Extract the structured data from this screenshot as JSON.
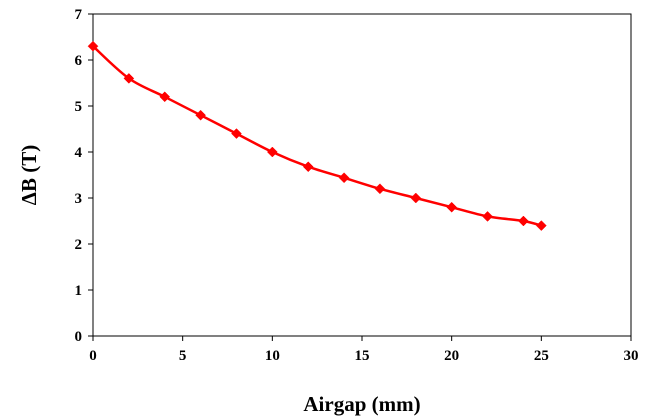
{
  "chart_data": {
    "type": "line",
    "title": "",
    "xlabel": "Airgap (mm)",
    "ylabel": "ΔB (T)",
    "xlim": [
      0,
      30
    ],
    "ylim": [
      0,
      7
    ],
    "xticks": [
      "0",
      "5",
      "10",
      "15",
      "20",
      "25",
      "30"
    ],
    "yticks": [
      "0",
      "1",
      "2",
      "3",
      "4",
      "5",
      "6",
      "7"
    ],
    "grid": false,
    "legend": "none",
    "marker": "diamond",
    "series": [
      {
        "color": "#ff0000",
        "x": [
          0,
          2,
          4,
          6,
          8,
          10,
          12,
          14,
          16,
          18,
          20,
          22,
          24,
          25
        ],
        "y": [
          6.3,
          5.6,
          5.2,
          4.8,
          4.4,
          4.0,
          3.68,
          3.44,
          3.2,
          3.0,
          2.8,
          2.6,
          2.5,
          2.4
        ]
      }
    ]
  }
}
